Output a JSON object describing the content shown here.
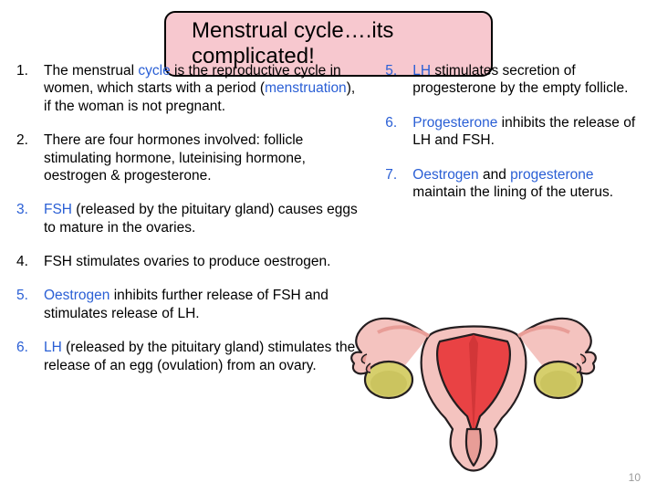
{
  "title": "Menstrual cycle….its complicated!",
  "colors": {
    "title_bg": "#f7c8cf",
    "title_border": "#000000",
    "keyword": "#2a5fd5",
    "text": "#000000",
    "pagenum": "#9a9a9a",
    "diagram": {
      "outline": "#241e20",
      "body_light": "#f4c3bf",
      "body_shadow": "#e89d97",
      "inner_red": "#e94244",
      "ovary": "#d6cf6c",
      "ovary_shadow": "#b7af49"
    }
  },
  "typography": {
    "title_fontsize": 24,
    "body_fontsize": 15.5,
    "pagenum_fontsize": 12,
    "font_family": "Comic Sans MS"
  },
  "left_list_start": 0,
  "left_list": [
    {
      "num_color": "black",
      "segments": [
        {
          "t": "The menstrual "
        },
        {
          "t": "cycle",
          "kw": true
        },
        {
          "t": " is the reproductive cycle in women, which starts with a period ("
        },
        {
          "t": "menstruation",
          "kw": true
        },
        {
          "t": "), if the woman is not pregnant."
        }
      ]
    },
    {
      "num_color": "black",
      "segments": [
        {
          "t": "There are four hormones involved: follicle stimulating hormone, luteinising hormone, oestrogen & progesterone."
        }
      ]
    },
    {
      "num_color": "blue",
      "segments": [
        {
          "t": "FSH",
          "kw": true
        },
        {
          "t": " (released by the pituitary gland) causes eggs to mature in the ovaries."
        }
      ]
    },
    {
      "num_color": "black",
      "segments": [
        {
          "t": "FSH stimulates ovaries to produce oestrogen."
        }
      ]
    },
    {
      "num_color": "blue",
      "segments": [
        {
          "t": "Oestrogen",
          "kw": true
        },
        {
          "t": " inhibits further release of FSH and stimulates release of LH."
        }
      ]
    },
    {
      "num_color": "blue",
      "segments": [
        {
          "t": "LH",
          "kw": true
        },
        {
          "t": " (released by the pituitary gland) stimulates the release of an egg (ovulation) from an ovary."
        }
      ]
    }
  ],
  "right_list_start": 4,
  "right_list": [
    {
      "num_color": "blue",
      "segments": [
        {
          "t": "LH",
          "kw": true
        },
        {
          "t": " stimulates secretion of progesterone by the empty follicle."
        }
      ]
    },
    {
      "num_color": "blue",
      "segments": [
        {
          "t": "Progesterone",
          "kw": true
        },
        {
          "t": " inhibits the release of LH and FSH."
        }
      ]
    },
    {
      "num_color": "blue",
      "segments": [
        {
          "t": "Oestrogen",
          "kw": true
        },
        {
          "t": " and "
        },
        {
          "t": "progesterone",
          "kw": true
        },
        {
          "t": " maintain the lining of the uterus."
        }
      ]
    }
  ],
  "page_number": "10",
  "diagram_name": "uterus-diagram"
}
